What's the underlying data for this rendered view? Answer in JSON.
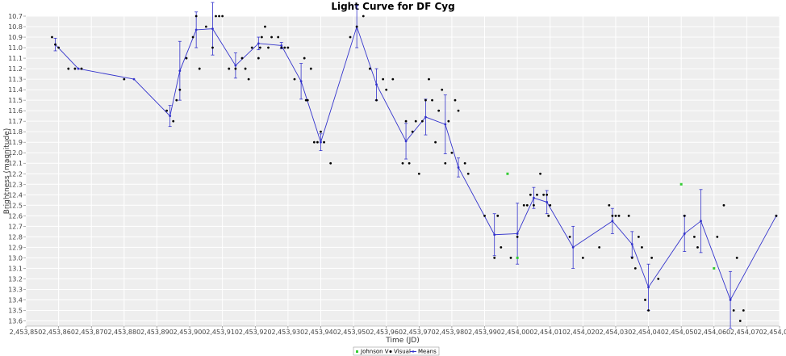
{
  "chart_data": {
    "type": "scatter",
    "title": "Light Curve for DF Cyg",
    "xlabel": "Time (JD)",
    "ylabel": "Brightness (magnitude)",
    "xlim": [
      2453850,
      2454080
    ],
    "ylim": [
      10.7,
      13.65
    ],
    "y_inverted": true,
    "x_ticks": [
      2453850,
      2453860,
      2453870,
      2453880,
      2453890,
      2453900,
      2453910,
      2453920,
      2453930,
      2453940,
      2453950,
      2453960,
      2453970,
      2453980,
      2453990,
      2454000,
      2454010,
      2454020,
      2454030,
      2454040,
      2454050,
      2454060,
      2454070,
      2454080
    ],
    "x_tick_labels": [
      "2,453,850",
      "2,453,860",
      "2,453,870",
      "2,453,880",
      "2,453,890",
      "2,453,900",
      "2,453,910",
      "2,453,920",
      "2,453,930",
      "2,453,940",
      "2,453,950",
      "2,453,960",
      "2,453,970",
      "2,453,980",
      "2,453,990",
      "2,454,000",
      "2,454,010",
      "2,454,020",
      "2,454,030",
      "2,454,040",
      "2,454,050",
      "2,454,060",
      "2,454,070",
      "2,454,080"
    ],
    "y_ticks": [
      10.7,
      10.8,
      10.9,
      11.0,
      11.1,
      11.2,
      11.3,
      11.4,
      11.5,
      11.6,
      11.7,
      11.8,
      11.9,
      12.0,
      12.1,
      12.2,
      12.3,
      12.4,
      12.5,
      12.6,
      12.7,
      12.8,
      12.9,
      13.0,
      13.1,
      13.2,
      13.3,
      13.4,
      13.5,
      13.6
    ],
    "y_tick_labels": [
      "10.7",
      "10.8",
      "10.9",
      "11.0",
      "11.1",
      "11.2",
      "11.3",
      "11.4",
      "11.5",
      "11.6",
      "11.7",
      "11.8",
      "11.9",
      "12.0",
      "12.1",
      "12.2",
      "12.3",
      "12.4",
      "12.5",
      "12.6",
      "12.7",
      "12.8",
      "12.9",
      "13.0",
      "13.1",
      "13.2",
      "13.3",
      "13.4",
      "13.5",
      "13.6"
    ],
    "grid": true,
    "legend_placement": "bottom-center",
    "series": [
      {
        "name": "Johnson V",
        "color": "#33cc33",
        "kind": "points",
        "points": [
          [
            2453997,
            12.2
          ],
          [
            2454000,
            13.0
          ],
          [
            2454050,
            12.3
          ],
          [
            2454060,
            13.1
          ]
        ]
      },
      {
        "name": "Visual",
        "color": "#000000",
        "kind": "points",
        "points": [
          [
            2453858,
            10.9
          ],
          [
            2453859,
            10.97
          ],
          [
            2453860,
            11.0
          ],
          [
            2453863,
            11.2
          ],
          [
            2453865,
            11.2
          ],
          [
            2453867,
            11.2
          ],
          [
            2453880,
            11.3
          ],
          [
            2453893,
            11.6
          ],
          [
            2453895,
            11.7
          ],
          [
            2453896,
            11.5
          ],
          [
            2453897,
            11.4
          ],
          [
            2453899,
            11.1
          ],
          [
            2453901,
            10.9
          ],
          [
            2453902,
            10.7
          ],
          [
            2453903,
            11.2
          ],
          [
            2453905,
            10.8
          ],
          [
            2453907,
            11.0
          ],
          [
            2453908,
            10.7
          ],
          [
            2453909,
            10.7
          ],
          [
            2453910,
            10.7
          ],
          [
            2453912,
            11.2
          ],
          [
            2453914,
            11.2
          ],
          [
            2453916,
            11.1
          ],
          [
            2453917,
            11.2
          ],
          [
            2453918,
            11.3
          ],
          [
            2453919,
            11.0
          ],
          [
            2453921,
            11.1
          ],
          [
            2453921.5,
            11.0
          ],
          [
            2453922,
            10.9
          ],
          [
            2453923,
            10.8
          ],
          [
            2453924,
            11.0
          ],
          [
            2453925,
            10.9
          ],
          [
            2453927,
            10.9
          ],
          [
            2453928,
            11.0
          ],
          [
            2453929,
            11.0
          ],
          [
            2453930,
            11.0
          ],
          [
            2453932,
            11.3
          ],
          [
            2453935,
            11.1
          ],
          [
            2453935.5,
            11.5
          ],
          [
            2453936,
            11.5
          ],
          [
            2453937,
            11.2
          ],
          [
            2453938,
            11.9
          ],
          [
            2453939,
            11.9
          ],
          [
            2453940,
            11.8
          ],
          [
            2453941,
            11.9
          ],
          [
            2453943,
            12.1
          ],
          [
            2453949,
            10.9
          ],
          [
            2453951,
            10.8
          ],
          [
            2453953,
            10.7
          ],
          [
            2453955,
            11.2
          ],
          [
            2453957,
            11.5
          ],
          [
            2453959,
            11.3
          ],
          [
            2453960,
            11.4
          ],
          [
            2453962,
            11.3
          ],
          [
            2453965,
            12.1
          ],
          [
            2453966,
            11.7
          ],
          [
            2453967,
            12.1
          ],
          [
            2453968,
            11.8
          ],
          [
            2453969,
            11.7
          ],
          [
            2453970,
            12.2
          ],
          [
            2453971,
            11.7
          ],
          [
            2453972,
            11.5
          ],
          [
            2453973,
            11.3
          ],
          [
            2453974,
            11.5
          ],
          [
            2453975,
            11.9
          ],
          [
            2453976,
            11.6
          ],
          [
            2453977,
            11.4
          ],
          [
            2453978,
            12.1
          ],
          [
            2453979,
            11.7
          ],
          [
            2453980,
            12.0
          ],
          [
            2453981,
            11.5
          ],
          [
            2453982,
            11.6
          ],
          [
            2453984,
            12.1
          ],
          [
            2453985,
            12.2
          ],
          [
            2453990,
            12.6
          ],
          [
            2453993,
            13.0
          ],
          [
            2453994,
            12.6
          ],
          [
            2453995,
            12.9
          ],
          [
            2453998,
            13.0
          ],
          [
            2454000,
            12.8
          ],
          [
            2454002,
            12.5
          ],
          [
            2454003,
            12.5
          ],
          [
            2454004,
            12.4
          ],
          [
            2454005,
            12.5
          ],
          [
            2454006,
            12.4
          ],
          [
            2454007,
            12.2
          ],
          [
            2454008,
            12.4
          ],
          [
            2454009,
            12.4
          ],
          [
            2454009.5,
            12.6
          ],
          [
            2454010,
            12.5
          ],
          [
            2454016,
            12.8
          ],
          [
            2454020,
            13.0
          ],
          [
            2454025,
            12.9
          ],
          [
            2454028,
            12.5
          ],
          [
            2454029,
            12.6
          ],
          [
            2454030,
            12.6
          ],
          [
            2454031,
            12.6
          ],
          [
            2454034,
            12.6
          ],
          [
            2454035,
            13.0
          ],
          [
            2454036,
            13.1
          ],
          [
            2454037,
            12.8
          ],
          [
            2454038,
            12.9
          ],
          [
            2454039,
            13.4
          ],
          [
            2454040,
            13.5
          ],
          [
            2454041,
            13.0
          ],
          [
            2454043,
            13.2
          ],
          [
            2454051,
            12.6
          ],
          [
            2454054,
            12.8
          ],
          [
            2454055,
            12.9
          ],
          [
            2454061,
            12.8
          ],
          [
            2454063,
            12.5
          ],
          [
            2454066,
            13.5
          ],
          [
            2454067,
            13.0
          ],
          [
            2454068,
            13.6
          ],
          [
            2454069,
            13.5
          ],
          [
            2454079,
            12.6
          ]
        ]
      },
      {
        "name": "Means",
        "color": "#3333cc",
        "kind": "line",
        "points": [
          [
            2453859,
            10.97,
            0.06
          ],
          [
            2453866,
            11.2,
            0.0
          ],
          [
            2453883,
            11.3,
            0.0
          ],
          [
            2453894,
            11.65,
            0.1
          ],
          [
            2453897,
            11.22,
            0.28
          ],
          [
            2453902,
            10.83,
            0.17
          ],
          [
            2453907,
            10.82,
            0.25
          ],
          [
            2453914,
            11.17,
            0.12
          ],
          [
            2453921,
            10.96,
            0.06
          ],
          [
            2453928,
            10.98,
            0.03
          ],
          [
            2453934,
            11.32,
            0.17
          ],
          [
            2453940,
            11.9,
            0.08
          ],
          [
            2453951,
            10.8,
            0.2
          ],
          [
            2453957,
            11.35,
            0.15
          ],
          [
            2453966,
            11.89,
            0.17
          ],
          [
            2453972,
            11.66,
            0.17
          ],
          [
            2453978,
            11.73,
            0.28
          ],
          [
            2453982,
            12.14,
            0.09
          ],
          [
            2453993,
            12.78,
            0.2
          ],
          [
            2454000,
            12.77,
            0.29
          ],
          [
            2454005,
            12.43,
            0.1
          ],
          [
            2454009,
            12.47,
            0.11
          ],
          [
            2454017,
            12.9,
            0.2
          ],
          [
            2454029,
            12.65,
            0.12
          ],
          [
            2454035,
            12.87,
            0.12
          ],
          [
            2454040,
            13.28,
            0.22
          ],
          [
            2454051,
            12.77,
            0.17
          ],
          [
            2454056,
            12.65,
            0.3
          ],
          [
            2454065,
            13.4,
            0.27
          ],
          [
            2454079,
            12.6,
            0.0
          ]
        ]
      }
    ]
  }
}
